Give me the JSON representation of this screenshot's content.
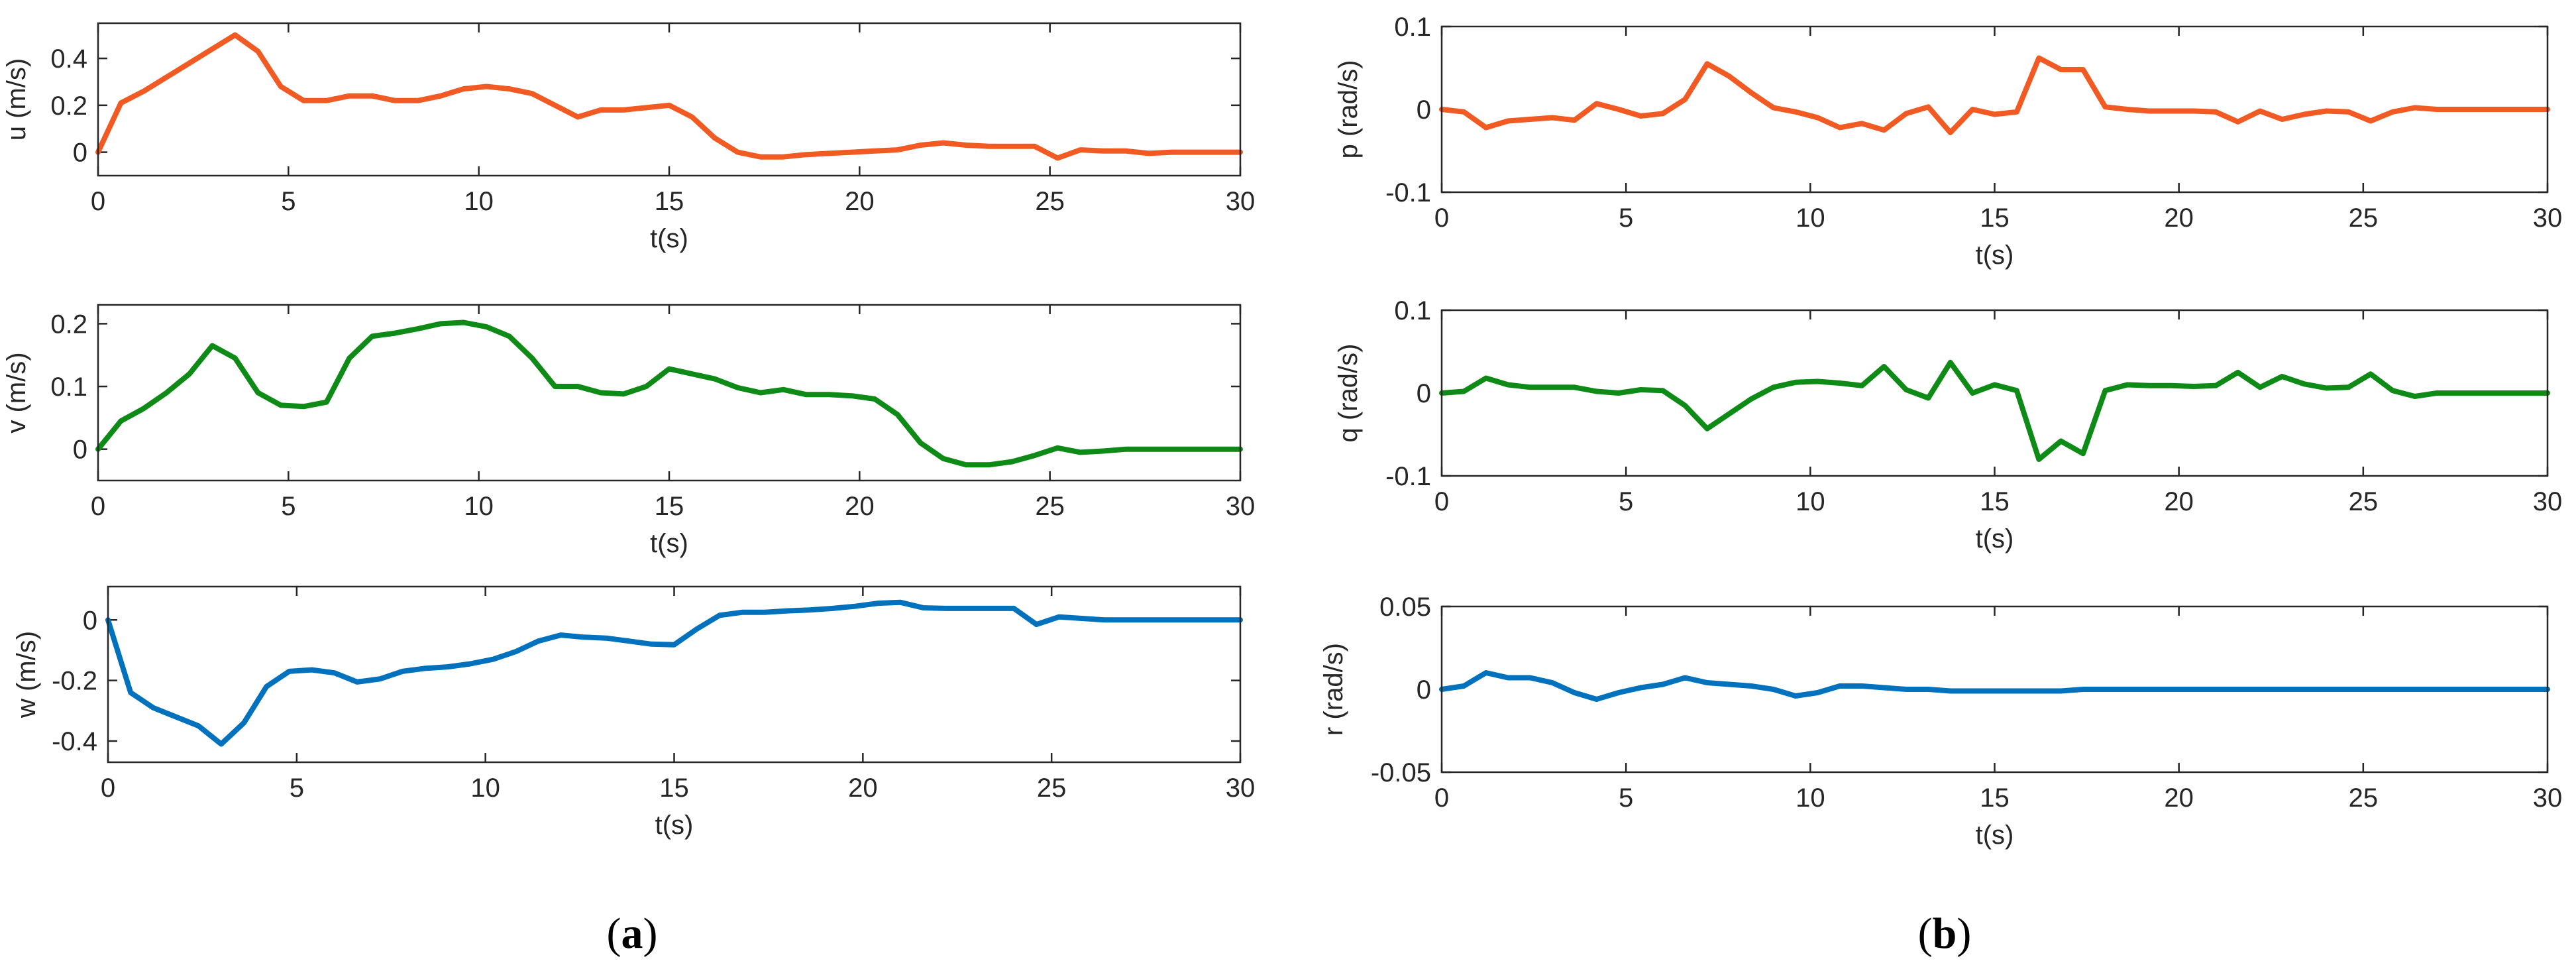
{
  "figure": {
    "panel_labels": [
      {
        "open": "(",
        "letter": "a",
        "close": ")"
      },
      {
        "open": "(",
        "letter": "b",
        "close": ")"
      }
    ]
  },
  "chart_data": [
    {
      "type": "line",
      "id": "u",
      "panel": "a",
      "ylabel": "u (m/s)",
      "xlabel": "t(s)",
      "xlim": [
        0,
        30
      ],
      "ylim": [
        -0.1,
        0.55
      ],
      "xticks": [
        0,
        5,
        10,
        15,
        20,
        25,
        30
      ],
      "xtick_labels": [
        "0",
        "5",
        "10",
        "15",
        "20",
        "25",
        "30"
      ],
      "yticks": [
        0,
        0.2,
        0.4
      ],
      "ytick_labels": [
        "0",
        "0.2",
        "0.4"
      ],
      "color": "#F15A22",
      "series": [
        {
          "name": "u",
          "x": [
            0,
            0.6,
            1.2,
            1.8,
            2.4,
            3.0,
            3.6,
            4.2,
            4.8,
            5.4,
            6.0,
            6.6,
            7.2,
            7.8,
            8.4,
            9.0,
            9.6,
            10.2,
            10.8,
            11.4,
            12.0,
            12.6,
            13.2,
            13.8,
            14.4,
            15.0,
            15.6,
            16.2,
            16.8,
            17.4,
            18.0,
            18.6,
            19.2,
            19.8,
            20.4,
            21.0,
            21.6,
            22.2,
            22.8,
            23.4,
            24.0,
            24.6,
            25.2,
            25.8,
            26.4,
            27.0,
            27.6,
            28.2,
            28.8,
            29.4,
            30.0
          ],
          "y": [
            0,
            0.21,
            0.26,
            0.32,
            0.38,
            0.44,
            0.5,
            0.43,
            0.28,
            0.22,
            0.22,
            0.24,
            0.24,
            0.22,
            0.22,
            0.24,
            0.27,
            0.28,
            0.27,
            0.25,
            0.2,
            0.15,
            0.18,
            0.18,
            0.19,
            0.2,
            0.15,
            0.06,
            0.0,
            -0.02,
            -0.02,
            -0.01,
            -0.005,
            0.0,
            0.005,
            0.01,
            0.03,
            0.04,
            0.03,
            0.025,
            0.025,
            0.025,
            -0.025,
            0.01,
            0.005,
            0.005,
            -0.005,
            0.0,
            0.0,
            0.0,
            0.0
          ]
        }
      ]
    },
    {
      "type": "line",
      "id": "v",
      "panel": "a",
      "ylabel": "v (m/s)",
      "xlabel": "t(s)",
      "xlim": [
        0,
        30
      ],
      "ylim": [
        -0.05,
        0.23
      ],
      "xticks": [
        0,
        5,
        10,
        15,
        20,
        25,
        30
      ],
      "xtick_labels": [
        "0",
        "5",
        "10",
        "15",
        "20",
        "25",
        "30"
      ],
      "yticks": [
        0,
        0.1,
        0.2
      ],
      "ytick_labels": [
        "0",
        "0.1",
        "0.2"
      ],
      "color": "#0E8A16",
      "series": [
        {
          "name": "v",
          "x": [
            0,
            0.6,
            1.2,
            1.8,
            2.4,
            3.0,
            3.6,
            4.2,
            4.8,
            5.4,
            6.0,
            6.6,
            7.2,
            7.8,
            8.4,
            9.0,
            9.6,
            10.2,
            10.8,
            11.4,
            12.0,
            12.6,
            13.2,
            13.8,
            14.4,
            15.0,
            15.6,
            16.2,
            16.8,
            17.4,
            18.0,
            18.6,
            19.2,
            19.8,
            20.4,
            21.0,
            21.6,
            22.2,
            22.8,
            23.4,
            24.0,
            24.6,
            25.2,
            25.8,
            26.4,
            27.0,
            27.6,
            28.2,
            28.8,
            29.4,
            30.0
          ],
          "y": [
            0,
            0.045,
            0.065,
            0.09,
            0.12,
            0.165,
            0.145,
            0.09,
            0.07,
            0.068,
            0.075,
            0.145,
            0.18,
            0.185,
            0.192,
            0.2,
            0.202,
            0.195,
            0.18,
            0.145,
            0.1,
            0.1,
            0.09,
            0.088,
            0.1,
            0.128,
            0.12,
            0.112,
            0.098,
            0.09,
            0.095,
            0.087,
            0.087,
            0.085,
            0.08,
            0.055,
            0.01,
            -0.015,
            -0.025,
            -0.025,
            -0.02,
            -0.01,
            0.002,
            -0.005,
            -0.003,
            0.0,
            0.0,
            0.0,
            0.0,
            0.0,
            0.0
          ]
        }
      ]
    },
    {
      "type": "line",
      "id": "w",
      "panel": "a",
      "ylabel": "w (m/s)",
      "xlabel": "t(s)",
      "xlim": [
        0,
        30
      ],
      "ylim": [
        -0.47,
        0.11
      ],
      "xticks": [
        0,
        5,
        10,
        15,
        20,
        25,
        30
      ],
      "xtick_labels": [
        "0",
        "5",
        "10",
        "15",
        "20",
        "25",
        "30"
      ],
      "yticks": [
        -0.4,
        -0.2,
        0
      ],
      "ytick_labels": [
        "-0.4",
        "-0.2",
        "0"
      ],
      "color": "#0072BD",
      "series": [
        {
          "name": "w",
          "x": [
            0,
            0.6,
            1.2,
            1.8,
            2.4,
            3.0,
            3.6,
            4.2,
            4.8,
            5.4,
            6.0,
            6.6,
            7.2,
            7.8,
            8.4,
            9.0,
            9.6,
            10.2,
            10.8,
            11.4,
            12.0,
            12.6,
            13.2,
            13.8,
            14.4,
            15.0,
            15.6,
            16.2,
            16.8,
            17.4,
            18.0,
            18.6,
            19.2,
            19.8,
            20.4,
            21.0,
            21.6,
            22.2,
            22.8,
            23.4,
            24.0,
            24.6,
            25.2,
            25.8,
            26.4,
            27.0,
            27.6,
            28.2,
            28.8,
            29.4,
            30.0
          ],
          "y": [
            0,
            -0.24,
            -0.29,
            -0.32,
            -0.35,
            -0.41,
            -0.34,
            -0.22,
            -0.17,
            -0.165,
            -0.175,
            -0.205,
            -0.195,
            -0.17,
            -0.16,
            -0.155,
            -0.145,
            -0.13,
            -0.105,
            -0.07,
            -0.05,
            -0.057,
            -0.06,
            -0.07,
            -0.08,
            -0.082,
            -0.03,
            0.015,
            0.025,
            0.025,
            0.03,
            0.033,
            0.038,
            0.045,
            0.055,
            0.058,
            0.04,
            0.038,
            0.038,
            0.038,
            0.038,
            -0.015,
            0.01,
            0.005,
            0.0,
            0.0,
            0.0,
            0.0,
            0.0,
            0.0,
            0.0
          ]
        }
      ]
    },
    {
      "type": "line",
      "id": "p",
      "panel": "b",
      "ylabel": "p (rad/s)",
      "xlabel": "t(s)",
      "xlim": [
        0,
        30
      ],
      "ylim": [
        -0.1,
        0.1
      ],
      "xticks": [
        0,
        5,
        10,
        15,
        20,
        25,
        30
      ],
      "xtick_labels": [
        "0",
        "5",
        "10",
        "15",
        "20",
        "25",
        "30"
      ],
      "yticks": [
        -0.1,
        0,
        0.1
      ],
      "ytick_labels": [
        "-0.1",
        "0",
        "0.1"
      ],
      "color": "#F15A22",
      "series": [
        {
          "name": "p",
          "x": [
            0,
            0.6,
            1.2,
            1.8,
            2.4,
            3.0,
            3.6,
            4.2,
            4.8,
            5.4,
            6.0,
            6.6,
            7.2,
            7.8,
            8.4,
            9.0,
            9.6,
            10.2,
            10.8,
            11.4,
            12.0,
            12.6,
            13.2,
            13.8,
            14.4,
            15.0,
            15.6,
            16.2,
            16.8,
            17.4,
            18.0,
            18.6,
            19.2,
            19.8,
            20.4,
            21.0,
            21.6,
            22.2,
            22.8,
            23.4,
            24.0,
            24.6,
            25.2,
            25.8,
            26.4,
            27.0,
            27.6,
            28.2,
            28.8,
            29.4,
            30.0
          ],
          "y": [
            0,
            -0.003,
            -0.022,
            -0.014,
            -0.012,
            -0.01,
            -0.013,
            0.007,
            0.0,
            -0.008,
            -0.005,
            0.012,
            0.055,
            0.04,
            0.02,
            0.002,
            -0.003,
            -0.01,
            -0.022,
            -0.017,
            -0.025,
            -0.005,
            0.003,
            -0.028,
            0.0,
            -0.006,
            -0.003,
            0.062,
            0.048,
            0.048,
            0.003,
            0.0,
            -0.002,
            -0.002,
            -0.002,
            -0.003,
            -0.015,
            -0.002,
            -0.012,
            -0.006,
            -0.002,
            -0.003,
            -0.014,
            -0.003,
            0.002,
            0.0,
            0.0,
            0.0,
            0.0,
            0.0,
            0.0
          ]
        }
      ]
    },
    {
      "type": "line",
      "id": "q",
      "panel": "b",
      "ylabel": "q (rad/s)",
      "xlabel": "t(s)",
      "xlim": [
        0,
        30
      ],
      "ylim": [
        -0.1,
        0.1
      ],
      "xticks": [
        0,
        5,
        10,
        15,
        20,
        25,
        30
      ],
      "xtick_labels": [
        "0",
        "5",
        "10",
        "15",
        "20",
        "25",
        "30"
      ],
      "yticks": [
        -0.1,
        0,
        0.1
      ],
      "ytick_labels": [
        "-0.1",
        "0",
        "0.1"
      ],
      "color": "#0E8A16",
      "series": [
        {
          "name": "q",
          "x": [
            0,
            0.6,
            1.2,
            1.8,
            2.4,
            3.0,
            3.6,
            4.2,
            4.8,
            5.4,
            6.0,
            6.6,
            7.2,
            7.8,
            8.4,
            9.0,
            9.6,
            10.2,
            10.8,
            11.4,
            12.0,
            12.6,
            13.2,
            13.8,
            14.4,
            15.0,
            15.6,
            16.2,
            16.8,
            17.4,
            18.0,
            18.6,
            19.2,
            19.8,
            20.4,
            21.0,
            21.6,
            22.2,
            22.8,
            23.4,
            24.0,
            24.6,
            25.2,
            25.8,
            26.4,
            27.0,
            27.6,
            28.2,
            28.8,
            29.4,
            30.0
          ],
          "y": [
            0,
            0.002,
            0.018,
            0.01,
            0.007,
            0.007,
            0.007,
            0.002,
            0.0,
            0.004,
            0.003,
            -0.015,
            -0.043,
            -0.025,
            -0.007,
            0.007,
            0.013,
            0.014,
            0.012,
            0.009,
            0.032,
            0.004,
            -0.006,
            0.037,
            0.0,
            0.01,
            0.003,
            -0.08,
            -0.058,
            -0.073,
            0.003,
            0.01,
            0.009,
            0.009,
            0.008,
            0.009,
            0.025,
            0.007,
            0.02,
            0.011,
            0.006,
            0.007,
            0.023,
            0.003,
            -0.004,
            0.0,
            0.0,
            0.0,
            0.0,
            0.0,
            0.0
          ]
        }
      ]
    },
    {
      "type": "line",
      "id": "r",
      "panel": "b",
      "ylabel": "r (rad/s)",
      "xlabel": "t(s)",
      "xlim": [
        0,
        30
      ],
      "ylim": [
        -0.05,
        0.05
      ],
      "xticks": [
        0,
        5,
        10,
        15,
        20,
        25,
        30
      ],
      "xtick_labels": [
        "0",
        "5",
        "10",
        "15",
        "20",
        "25",
        "30"
      ],
      "yticks": [
        -0.05,
        0,
        0.05
      ],
      "ytick_labels": [
        "-0.05",
        "0",
        "0.05"
      ],
      "color": "#0072BD",
      "series": [
        {
          "name": "r",
          "x": [
            0,
            0.6,
            1.2,
            1.8,
            2.4,
            3.0,
            3.6,
            4.2,
            4.8,
            5.4,
            6.0,
            6.6,
            7.2,
            7.8,
            8.4,
            9.0,
            9.6,
            10.2,
            10.8,
            11.4,
            12.0,
            12.6,
            13.2,
            13.8,
            14.4,
            15.0,
            15.6,
            16.2,
            16.8,
            17.4,
            18.0,
            18.6,
            19.2,
            19.8,
            20.4,
            21.0,
            21.6,
            22.2,
            22.8,
            23.4,
            24.0,
            24.6,
            25.2,
            25.8,
            26.4,
            27.0,
            27.6,
            28.2,
            28.8,
            29.4,
            30.0
          ],
          "y": [
            0,
            0.002,
            0.01,
            0.007,
            0.007,
            0.004,
            -0.002,
            -0.006,
            -0.002,
            0.001,
            0.003,
            0.007,
            0.004,
            0.003,
            0.002,
            0.0,
            -0.004,
            -0.002,
            0.002,
            0.002,
            0.001,
            0.0,
            0.0,
            -0.001,
            -0.001,
            -0.001,
            -0.001,
            -0.001,
            -0.001,
            0.0,
            0.0,
            0.0,
            0.0,
            0.0,
            0.0,
            0.0,
            0.0,
            0.0,
            0.0,
            0.0,
            0.0,
            0.0,
            0.0,
            0.0,
            0.0,
            0.0,
            0.0,
            0.0,
            0.0,
            0.0,
            0.0
          ]
        }
      ]
    }
  ]
}
